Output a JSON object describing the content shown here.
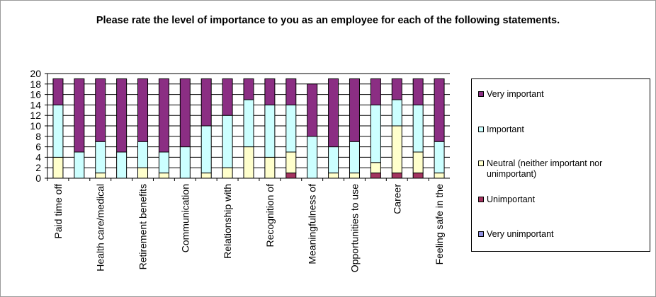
{
  "chart_data": {
    "type": "bar",
    "stacked": true,
    "title": "Please rate the level of importance to you as an employee for each of the following statements.",
    "categories": [
      "Paid time off",
      "",
      "Health care/medical",
      "",
      "Retirement benefits",
      "",
      "Communication",
      "",
      "Relationship with",
      "",
      "Recognition of",
      "",
      "Meaningfulness of",
      "",
      "Opportunities to use",
      "",
      "Career",
      "",
      "Feeling safe in the"
    ],
    "series": [
      {
        "name": "Very unimportant",
        "color": "#8f8fe0",
        "values": [
          0,
          0,
          0,
          0,
          0,
          0,
          0,
          0,
          0,
          0,
          0,
          0,
          0,
          0,
          0,
          0,
          0,
          0,
          0
        ]
      },
      {
        "name": "Unimportant",
        "color": "#a3335f",
        "values": [
          0,
          0,
          0,
          0,
          0,
          0,
          0,
          0,
          0,
          0,
          0,
          1,
          0,
          0,
          0,
          1,
          1,
          1,
          0
        ]
      },
      {
        "name": "Neutral (neither important nor unimportant)",
        "color": "#ffffcc",
        "values": [
          4,
          0,
          1,
          0,
          2,
          1,
          0,
          1,
          2,
          6,
          4,
          4,
          0,
          1,
          1,
          2,
          9,
          4,
          1
        ]
      },
      {
        "name": "Important",
        "color": "#ccffff",
        "values": [
          10,
          5,
          6,
          5,
          5,
          4,
          6,
          9,
          10,
          9,
          10,
          9,
          8,
          5,
          6,
          11,
          5,
          9,
          6
        ]
      },
      {
        "name": "Very important",
        "color": "#8b2e83",
        "values": [
          5,
          14,
          12,
          14,
          12,
          14,
          13,
          9,
          7,
          4,
          5,
          5,
          10,
          13,
          12,
          5,
          4,
          5,
          12
        ]
      }
    ],
    "ylim": [
      0,
      20
    ],
    "yticks": [
      0,
      2,
      4,
      6,
      8,
      10,
      12,
      14,
      16,
      18,
      20
    ],
    "legend_placement": "right",
    "legend_order": [
      "Very important",
      "Important",
      "Neutral (neither important nor unimportant)",
      "Unimportant",
      "Very unimportant"
    ]
  }
}
